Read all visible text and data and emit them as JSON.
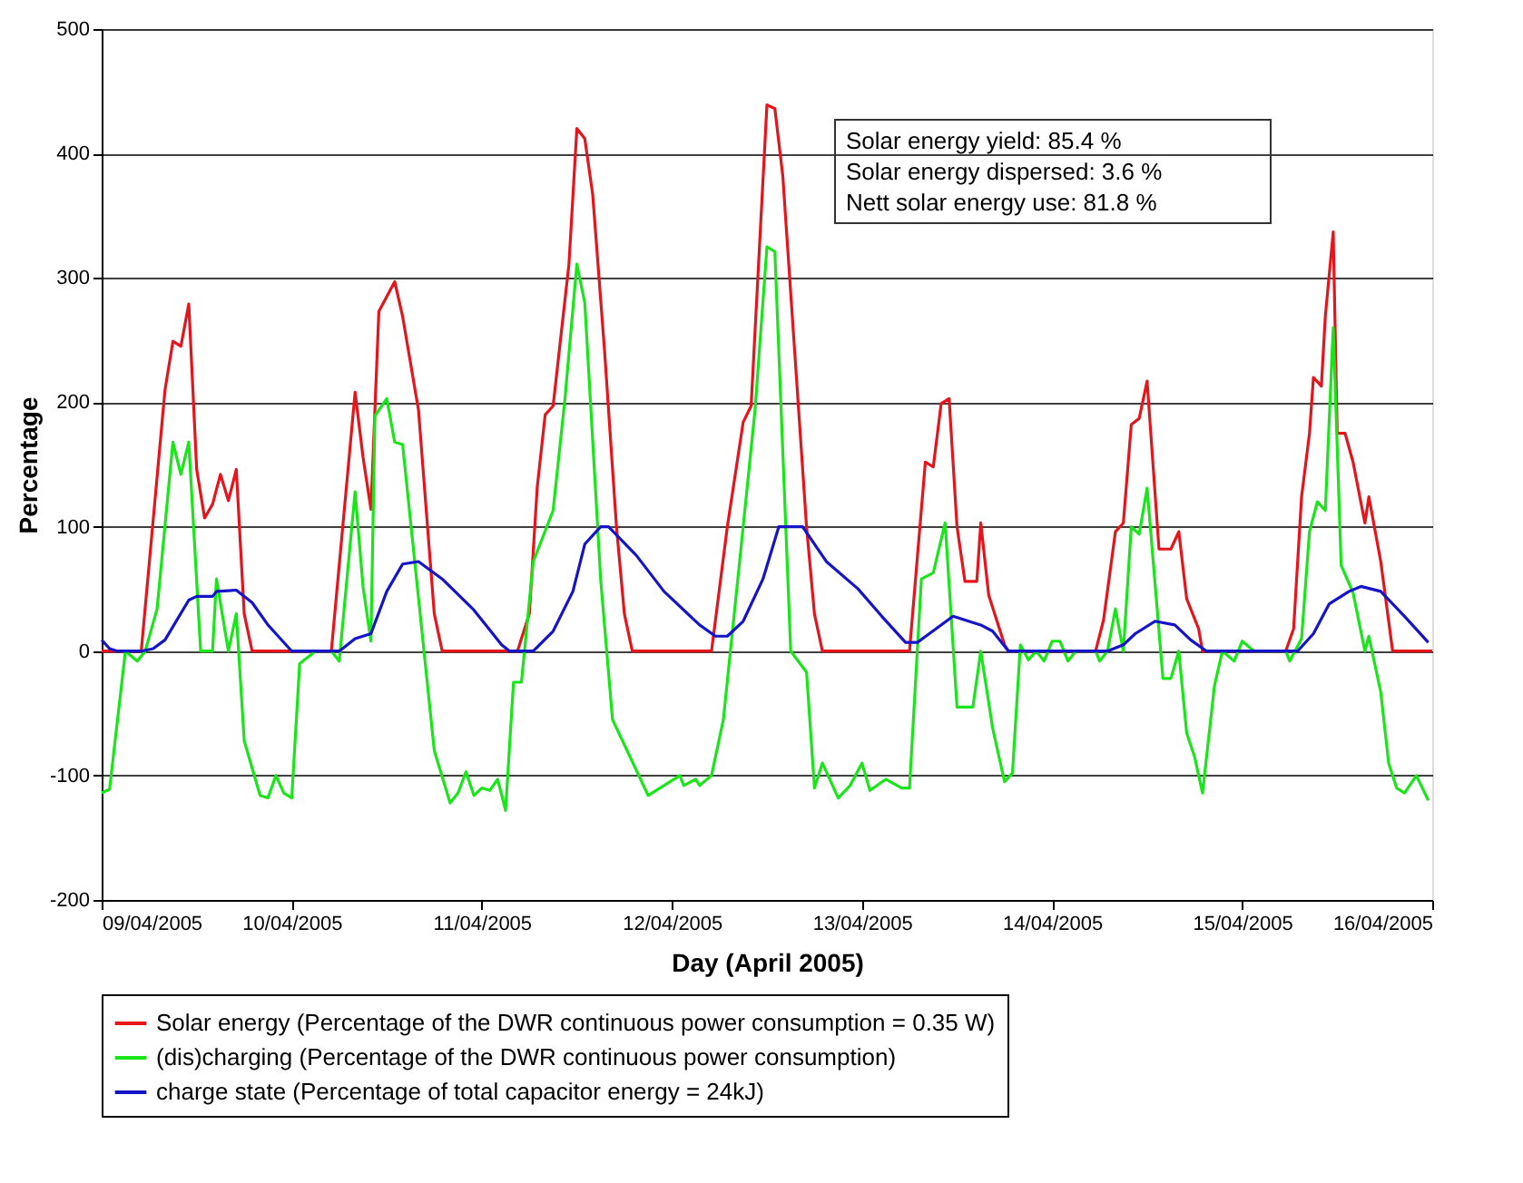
{
  "chart_data": {
    "type": "line",
    "xlabel": "Day (April 2005)",
    "ylabel": "Percentage",
    "ylim": [
      -200,
      500
    ],
    "yticks": [
      -200,
      -100,
      0,
      100,
      200,
      300,
      400,
      500
    ],
    "xlim": [
      "2005-04-09T00:00",
      "2005-04-16T00:00"
    ],
    "xticks": [
      {
        "value": "2005-04-09",
        "label": "09/04/2005"
      },
      {
        "value": "2005-04-10",
        "label": "10/04/2005"
      },
      {
        "value": "2005-04-11",
        "label": "11/04/2005"
      },
      {
        "value": "2005-04-12",
        "label": "12/04/2005"
      },
      {
        "value": "2005-04-13",
        "label": "13/04/2005"
      },
      {
        "value": "2005-04-14",
        "label": "14/04/2005"
      },
      {
        "value": "2005-04-15",
        "label": "15/04/2005"
      },
      {
        "value": "2005-04-16",
        "label": "16/04/2005"
      }
    ],
    "grid": "y",
    "legend": "bottom",
    "marker": "none",
    "line_style": "solid",
    "annotations": [
      "Solar energy yield: 85.4 %",
      "Solar energy dispersed: 3.6 %",
      "Nett solar energy use: 81.8 %"
    ],
    "series": [
      {
        "name": "Solar energy (Percentage of the DWR continuous power consumption = 0.35 W)",
        "color": "#e8141b",
        "x": [
          "2005-04-09T00:00",
          "2005-04-09T05:00",
          "2005-04-09T08:00",
          "2005-04-09T09:00",
          "2005-04-09T10:00",
          "2005-04-09T11:00",
          "2005-04-09T12:00",
          "2005-04-09T13:00",
          "2005-04-09T14:00",
          "2005-04-09T15:00",
          "2005-04-09T16:00",
          "2005-04-09T17:00",
          "2005-04-09T18:00",
          "2005-04-09T19:00",
          "2005-04-10T05:00",
          "2005-04-10T08:00",
          "2005-04-10T09:00",
          "2005-04-10T10:00",
          "2005-04-10T11:00",
          "2005-04-10T13:00",
          "2005-04-10T14:00",
          "2005-04-10T16:00",
          "2005-04-10T18:00",
          "2005-04-10T19:00",
          "2005-04-11T04:30",
          "2005-04-11T06:00",
          "2005-04-11T07:00",
          "2005-04-11T08:00",
          "2005-04-11T09:00",
          "2005-04-11T11:00",
          "2005-04-11T12:00",
          "2005-04-11T13:00",
          "2005-04-11T14:00",
          "2005-04-11T15:30",
          "2005-04-11T17:00",
          "2005-04-11T18:00",
          "2005-04-11T19:00",
          "2005-04-12T05:00",
          "2005-04-12T07:00",
          "2005-04-12T09:00",
          "2005-04-12T10:00",
          "2005-04-12T12:00",
          "2005-04-12T13:00",
          "2005-04-12T14:00",
          "2005-04-12T15:30",
          "2005-04-12T17:00",
          "2005-04-12T18:00",
          "2005-04-12T19:00",
          "2005-04-13T06:00",
          "2005-04-13T08:00",
          "2005-04-13T09:00",
          "2005-04-13T10:00",
          "2005-04-13T11:00",
          "2005-04-13T12:00",
          "2005-04-13T13:00",
          "2005-04-13T14:30",
          "2005-04-13T15:00",
          "2005-04-13T16:00",
          "2005-04-13T18:00",
          "2005-04-13T18:30",
          "2005-04-14T05:30",
          "2005-04-14T06:30",
          "2005-04-14T08:00",
          "2005-04-14T09:00",
          "2005-04-14T10:00",
          "2005-04-14T11:00",
          "2005-04-14T12:00",
          "2005-04-14T13:30",
          "2005-04-14T15:00",
          "2005-04-14T16:00",
          "2005-04-14T17:00",
          "2005-04-14T18:30",
          "2005-04-14T19:00",
          "2005-04-15T05:30",
          "2005-04-15T06:30",
          "2005-04-15T07:30",
          "2005-04-15T08:30",
          "2005-04-15T09:00",
          "2005-04-15T10:00",
          "2005-04-15T10:30",
          "2005-04-15T11:30",
          "2005-04-15T12:00",
          "2005-04-15T13:00",
          "2005-04-15T14:00",
          "2005-04-15T15:30",
          "2005-04-15T16:00",
          "2005-04-15T17:30",
          "2005-04-15T18:30",
          "2005-04-15T19:00",
          "2005-04-16T00:00"
        ],
        "values": [
          0,
          0,
          210,
          249,
          245,
          279,
          146,
          107,
          118,
          142,
          121,
          146,
          30,
          0,
          0,
          208,
          156,
          114,
          273,
          297,
          269,
          194,
          30,
          0,
          0,
          30,
          132,
          190,
          197,
          311,
          420,
          412,
          367,
          241,
          100,
          30,
          0,
          0,
          100,
          184,
          197,
          439,
          436,
          382,
          241,
          100,
          30,
          0,
          0,
          152,
          148,
          199,
          203,
          100,
          56,
          56,
          103,
          45,
          5,
          0,
          0,
          25,
          96,
          103,
          182,
          187,
          217,
          82,
          82,
          96,
          42,
          18,
          0,
          0,
          18,
          124,
          175,
          220,
          213,
          269,
          337,
          175,
          175,
          152,
          103,
          124,
          72,
          24,
          0,
          0
        ]
      },
      {
        "name": "(dis)charging (Percentage of the DWR continuous power consumption)",
        "color": "#19e619",
        "x": [
          "2005-04-09T00:00",
          "2005-04-09T01:00",
          "2005-04-09T03:00",
          "2005-04-09T04:30",
          "2005-04-09T05:30",
          "2005-04-09T07:00",
          "2005-04-09T09:00",
          "2005-04-09T10:00",
          "2005-04-09T11:00",
          "2005-04-09T12:30",
          "2005-04-09T14:00",
          "2005-04-09T14:30",
          "2005-04-09T16:00",
          "2005-04-09T17:00",
          "2005-04-09T18:00",
          "2005-04-09T20:00",
          "2005-04-09T21:00",
          "2005-04-09T22:00",
          "2005-04-09T23:00",
          "2005-04-10T00:00",
          "2005-04-10T01:00",
          "2005-04-10T03:00",
          "2005-04-10T05:00",
          "2005-04-10T06:00",
          "2005-04-10T08:00",
          "2005-04-10T09:00",
          "2005-04-10T10:00",
          "2005-04-10T10:30",
          "2005-04-10T12:00",
          "2005-04-10T13:00",
          "2005-04-10T14:00",
          "2005-04-10T18:00",
          "2005-04-10T20:00",
          "2005-04-10T21:00",
          "2005-04-10T22:00",
          "2005-04-10T23:00",
          "2005-04-11T00:00",
          "2005-04-11T01:00",
          "2005-04-11T02:00",
          "2005-04-11T03:00",
          "2005-04-11T04:00",
          "2005-04-11T05:00",
          "2005-04-11T06:30",
          "2005-04-11T09:00",
          "2005-04-11T10:30",
          "2005-04-11T12:00",
          "2005-04-11T13:00",
          "2005-04-11T15:00",
          "2005-04-11T16:30",
          "2005-04-11T21:00",
          "2005-04-12T01:00",
          "2005-04-12T01:30",
          "2005-04-12T03:00",
          "2005-04-12T03:30",
          "2005-04-12T05:00",
          "2005-04-12T06:30",
          "2005-04-12T09:00",
          "2005-04-12T10:30",
          "2005-04-12T12:00",
          "2005-04-12T13:00",
          "2005-04-12T15:00",
          "2005-04-12T17:00",
          "2005-04-12T18:00",
          "2005-04-12T19:00",
          "2005-04-12T21:00",
          "2005-04-12T22:30",
          "2005-04-13T00:00",
          "2005-04-13T01:00",
          "2005-04-13T03:00",
          "2005-04-13T05:00",
          "2005-04-13T06:00",
          "2005-04-13T07:30",
          "2005-04-13T09:00",
          "2005-04-13T10:30",
          "2005-04-13T12:00",
          "2005-04-13T14:00",
          "2005-04-13T15:00",
          "2005-04-13T16:30",
          "2005-04-13T18:00",
          "2005-04-13T19:00",
          "2005-04-13T20:00",
          "2005-04-13T21:00",
          "2005-04-13T22:00",
          "2005-04-13T23:00",
          "2005-04-14T00:00",
          "2005-04-14T01:00",
          "2005-04-14T02:00",
          "2005-04-14T03:00",
          "2005-04-14T05:30",
          "2005-04-14T06:00",
          "2005-04-14T07:00",
          "2005-04-14T08:00",
          "2005-04-14T09:00",
          "2005-04-14T10:00",
          "2005-04-14T11:00",
          "2005-04-14T12:00",
          "2005-04-14T14:00",
          "2005-04-14T15:00",
          "2005-04-14T16:00",
          "2005-04-14T17:00",
          "2005-04-14T18:00",
          "2005-04-14T19:00",
          "2005-04-14T20:30",
          "2005-04-14T21:30",
          "2005-04-14T23:00",
          "2005-04-15T00:00",
          "2005-04-15T01:30",
          "2005-04-15T05:30",
          "2005-04-15T06:00",
          "2005-04-15T07:30",
          "2005-04-15T08:30",
          "2005-04-15T09:30",
          "2005-04-15T10:30",
          "2005-04-15T11:30",
          "2005-04-15T12:30",
          "2005-04-15T14:00",
          "2005-04-15T15:30",
          "2005-04-15T16:00",
          "2005-04-15T17:30",
          "2005-04-15T18:30",
          "2005-04-15T19:30",
          "2005-04-15T20:30",
          "2005-04-15T22:00",
          "2005-04-15T23:30"
        ],
        "values": [
          -114,
          -111,
          0,
          -8,
          0,
          34,
          168,
          142,
          168,
          0,
          0,
          58,
          0,
          30,
          -72,
          -116,
          -118,
          -100,
          -114,
          -118,
          -10,
          0,
          0,
          -8,
          128,
          52,
          8,
          189,
          203,
          168,
          166,
          -80,
          -122,
          -114,
          -97,
          -116,
          -110,
          -112,
          -103,
          -128,
          -25,
          -25,
          72,
          113,
          203,
          311,
          280,
          58,
          -55,
          -116,
          -100,
          -108,
          -103,
          -108,
          -100,
          -55,
          100,
          194,
          325,
          321,
          0,
          -17,
          -110,
          -90,
          -118,
          -108,
          -90,
          -112,
          -103,
          -110,
          -110,
          58,
          63,
          103,
          -45,
          -45,
          0,
          -62,
          -105,
          -98,
          5,
          -7,
          0,
          -8,
          8,
          8,
          -8,
          0,
          0,
          -8,
          0,
          34,
          0,
          100,
          94,
          131,
          -22,
          -22,
          0,
          -66,
          -85,
          -114,
          -28,
          0,
          -8,
          8,
          0,
          0,
          -8,
          10,
          96,
          120,
          113,
          260,
          69,
          47,
          0,
          12,
          -33,
          -90,
          -110,
          -114,
          -100,
          -120
        ]
      },
      {
        "name": "charge state (Percentage of total capacitor energy = 24kJ)",
        "color": "#1414c8",
        "x": [
          "2005-04-09T00:00",
          "2005-04-09T01:00",
          "2005-04-09T02:00",
          "2005-04-09T05:00",
          "2005-04-09T06:30",
          "2005-04-09T08:00",
          "2005-04-09T11:00",
          "2005-04-09T12:00",
          "2005-04-09T14:00",
          "2005-04-09T14:30",
          "2005-04-09T17:00",
          "2005-04-09T19:00",
          "2005-04-09T21:00",
          "2005-04-09T22:00",
          "2005-04-10T00:00",
          "2005-04-10T06:00",
          "2005-04-10T08:00",
          "2005-04-10T10:00",
          "2005-04-10T12:00",
          "2005-04-10T14:00",
          "2005-04-10T16:00",
          "2005-04-10T19:00",
          "2005-04-10T23:00",
          "2005-04-11T02:30",
          "2005-04-11T03:30",
          "2005-04-11T06:30",
          "2005-04-11T09:00",
          "2005-04-11T11:30",
          "2005-04-11T13:00",
          "2005-04-11T15:00",
          "2005-04-11T16:00",
          "2005-04-11T19:30",
          "2005-04-11T23:00",
          "2005-04-12T03:30",
          "2005-04-12T05:30",
          "2005-04-12T07:00",
          "2005-04-12T09:00",
          "2005-04-12T11:30",
          "2005-04-12T13:30",
          "2005-04-12T16:30",
          "2005-04-12T19:30",
          "2005-04-12T23:30",
          "2005-04-13T02:30",
          "2005-04-13T05:30",
          "2005-04-13T07:00",
          "2005-04-13T08:30",
          "2005-04-13T11:30",
          "2005-04-13T15:00",
          "2005-04-13T16:30",
          "2005-04-13T18:30",
          "2005-04-14T07:00",
          "2005-04-14T09:00",
          "2005-04-14T10:30",
          "2005-04-14T13:00",
          "2005-04-14T15:30",
          "2005-04-14T17:30",
          "2005-04-14T19:30",
          "2005-04-15T07:00",
          "2005-04-15T09:00",
          "2005-04-15T11:00",
          "2005-04-15T13:30",
          "2005-04-15T15:00",
          "2005-04-15T17:30",
          "2005-04-15T20:30",
          "2005-04-15T23:30"
        ],
        "values": [
          9,
          2,
          0,
          0,
          2,
          9,
          41,
          44,
          44,
          48,
          49,
          39,
          21,
          14,
          0,
          0,
          10,
          14,
          48,
          70,
          72,
          58,
          33,
          5,
          0,
          0,
          16,
          48,
          86,
          100,
          100,
          77,
          48,
          21,
          12,
          12,
          24,
          58,
          100,
          100,
          72,
          50,
          28,
          7,
          7,
          14,
          28,
          21,
          16,
          0,
          0,
          5,
          14,
          24,
          21,
          9,
          0,
          0,
          14,
          38,
          48,
          52,
          48,
          28,
          7
        ]
      }
    ]
  }
}
